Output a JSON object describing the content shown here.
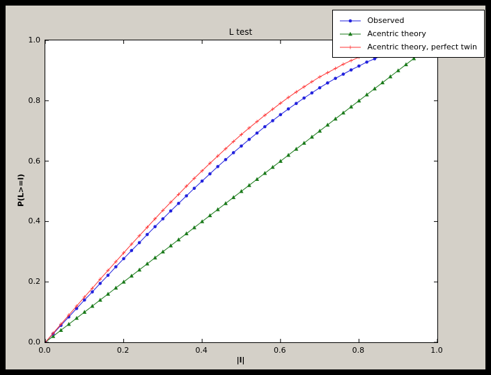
{
  "colors": {
    "window_bg": "#000000",
    "figure_bg": "#d4d0c8",
    "plot_bg": "#ffffff",
    "axis": "#000000"
  },
  "chart_data": {
    "type": "line",
    "title": "L test",
    "xlabel": "|l|",
    "ylabel": "P(L>=l)",
    "xlim": [
      0.0,
      1.0
    ],
    "ylim": [
      0.0,
      1.0
    ],
    "x_tick_values": [
      0.0,
      0.2,
      0.4,
      0.6,
      0.8,
      1.0
    ],
    "x_tick_labels": [
      "0.0",
      "0.2",
      "0.4",
      "0.6",
      "0.8",
      "1.0"
    ],
    "y_tick_values": [
      0.0,
      0.2,
      0.4,
      0.6,
      0.8,
      1.0
    ],
    "y_tick_labels": [
      "0.0",
      "0.2",
      "0.4",
      "0.6",
      "0.8",
      "1.0"
    ],
    "grid": false,
    "legend_position": "upper right",
    "series": [
      {
        "name": "Acentric theory",
        "color": "#1a7a1a",
        "marker": "triangle",
        "x": [
          0.0,
          0.02,
          0.04,
          0.06,
          0.08,
          0.1,
          0.12,
          0.14,
          0.16,
          0.18,
          0.2,
          0.22,
          0.24,
          0.26,
          0.28,
          0.3,
          0.32,
          0.34,
          0.36,
          0.38,
          0.4,
          0.42,
          0.44,
          0.46,
          0.48,
          0.5,
          0.52,
          0.54,
          0.56,
          0.58,
          0.6,
          0.62,
          0.64,
          0.66,
          0.68,
          0.7,
          0.72,
          0.74,
          0.76,
          0.78,
          0.8,
          0.82,
          0.84,
          0.86,
          0.88,
          0.9,
          0.92,
          0.94,
          0.96
        ],
        "y": [
          0.0,
          0.02,
          0.04,
          0.06,
          0.08,
          0.1,
          0.12,
          0.14,
          0.16,
          0.18,
          0.2,
          0.22,
          0.24,
          0.26,
          0.28,
          0.3,
          0.32,
          0.34,
          0.36,
          0.38,
          0.4,
          0.42,
          0.44,
          0.46,
          0.48,
          0.5,
          0.52,
          0.54,
          0.56,
          0.58,
          0.6,
          0.62,
          0.64,
          0.66,
          0.68,
          0.7,
          0.72,
          0.74,
          0.76,
          0.78,
          0.8,
          0.82,
          0.84,
          0.86,
          0.88,
          0.9,
          0.92,
          0.94,
          0.96
        ]
      },
      {
        "name": "Observed",
        "color": "#2222dd",
        "marker": "circle",
        "x": [
          0.0,
          0.02,
          0.04,
          0.06,
          0.08,
          0.1,
          0.12,
          0.14,
          0.16,
          0.18,
          0.2,
          0.22,
          0.24,
          0.26,
          0.28,
          0.3,
          0.32,
          0.34,
          0.36,
          0.38,
          0.4,
          0.42,
          0.44,
          0.46,
          0.48,
          0.5,
          0.52,
          0.54,
          0.56,
          0.58,
          0.6,
          0.62,
          0.64,
          0.66,
          0.68,
          0.7,
          0.72,
          0.74,
          0.76,
          0.78,
          0.8,
          0.82,
          0.84,
          0.86
        ],
        "y": [
          0.0,
          0.028,
          0.056,
          0.084,
          0.112,
          0.14,
          0.167,
          0.195,
          0.222,
          0.25,
          0.277,
          0.304,
          0.33,
          0.357,
          0.383,
          0.409,
          0.435,
          0.46,
          0.485,
          0.51,
          0.534,
          0.558,
          0.582,
          0.605,
          0.628,
          0.65,
          0.672,
          0.693,
          0.714,
          0.734,
          0.754,
          0.773,
          0.791,
          0.809,
          0.826,
          0.843,
          0.859,
          0.874,
          0.888,
          0.902,
          0.915,
          0.928,
          0.939,
          0.95
        ]
      },
      {
        "name": "Acentric theory, perfect twin",
        "color": "#ff3333",
        "marker": "plus",
        "x": [
          0.0,
          0.02,
          0.04,
          0.06,
          0.08,
          0.1,
          0.12,
          0.14,
          0.16,
          0.18,
          0.2,
          0.22,
          0.24,
          0.26,
          0.28,
          0.3,
          0.32,
          0.34,
          0.36,
          0.38,
          0.4,
          0.42,
          0.44,
          0.46,
          0.48,
          0.5,
          0.52,
          0.54,
          0.56,
          0.58,
          0.6,
          0.62,
          0.64,
          0.66,
          0.68,
          0.7,
          0.72,
          0.74,
          0.76,
          0.78,
          0.8,
          0.82,
          0.84,
          0.86
        ],
        "y": [
          0.0,
          0.03,
          0.06,
          0.09,
          0.12,
          0.15,
          0.179,
          0.209,
          0.238,
          0.267,
          0.296,
          0.325,
          0.353,
          0.381,
          0.409,
          0.437,
          0.464,
          0.49,
          0.517,
          0.543,
          0.568,
          0.593,
          0.617,
          0.641,
          0.665,
          0.688,
          0.71,
          0.731,
          0.752,
          0.772,
          0.792,
          0.811,
          0.829,
          0.846,
          0.863,
          0.879,
          0.893,
          0.907,
          0.921,
          0.933,
          0.944,
          0.954,
          0.964,
          0.972
        ]
      }
    ],
    "legend_order": [
      "Observed",
      "Acentric theory",
      "Acentric theory, perfect twin"
    ]
  }
}
